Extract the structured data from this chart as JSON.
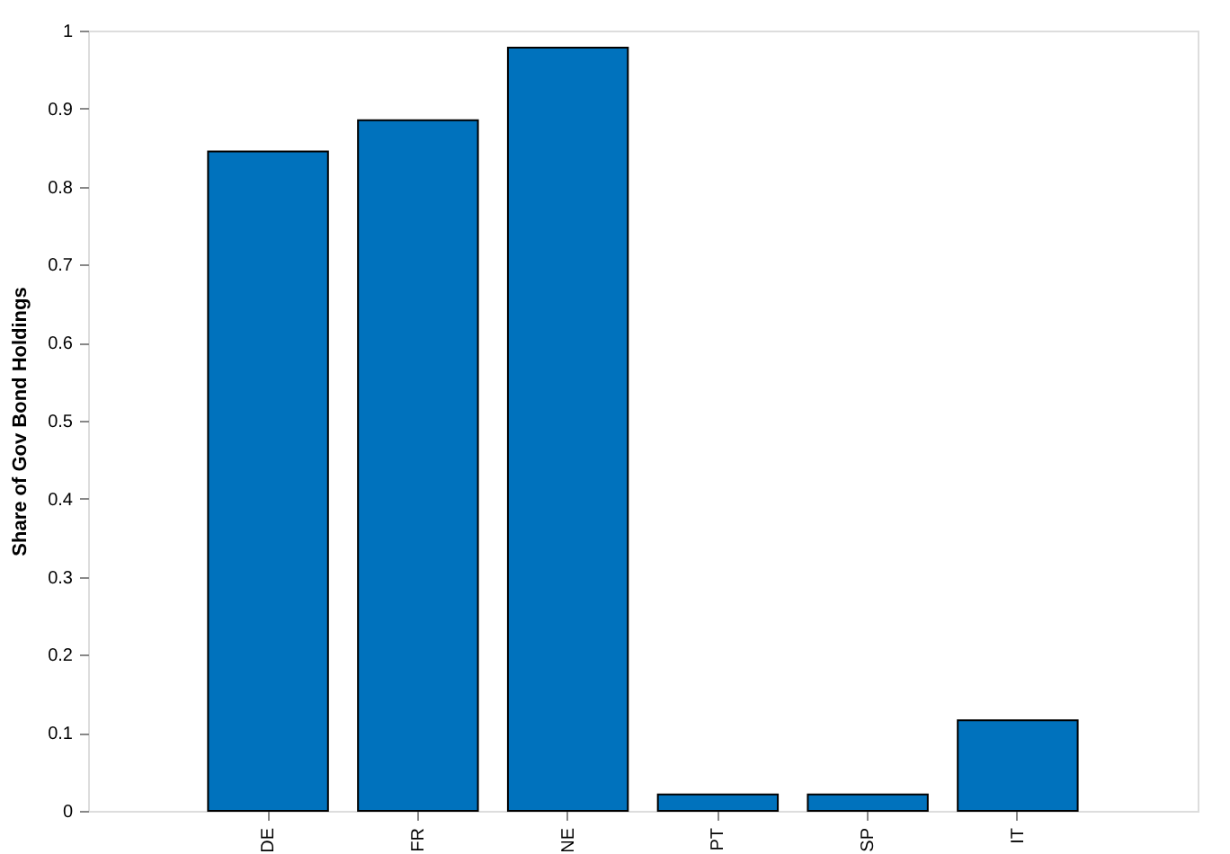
{
  "chart_data": {
    "type": "bar",
    "ylabel": "Share of Gov Bond Holdings",
    "categories": [
      "DE",
      "FR",
      "NE",
      "PT",
      "SP",
      "IT"
    ],
    "values": [
      0.845,
      0.885,
      0.978,
      0.021,
      0.021,
      0.116
    ],
    "color": "#0072bd",
    "ylim": [
      0,
      1
    ],
    "yticks": [
      0,
      0.1,
      0.2,
      0.3,
      0.4,
      0.5,
      0.6,
      0.7,
      0.8,
      0.9,
      1
    ],
    "grid": false
  }
}
